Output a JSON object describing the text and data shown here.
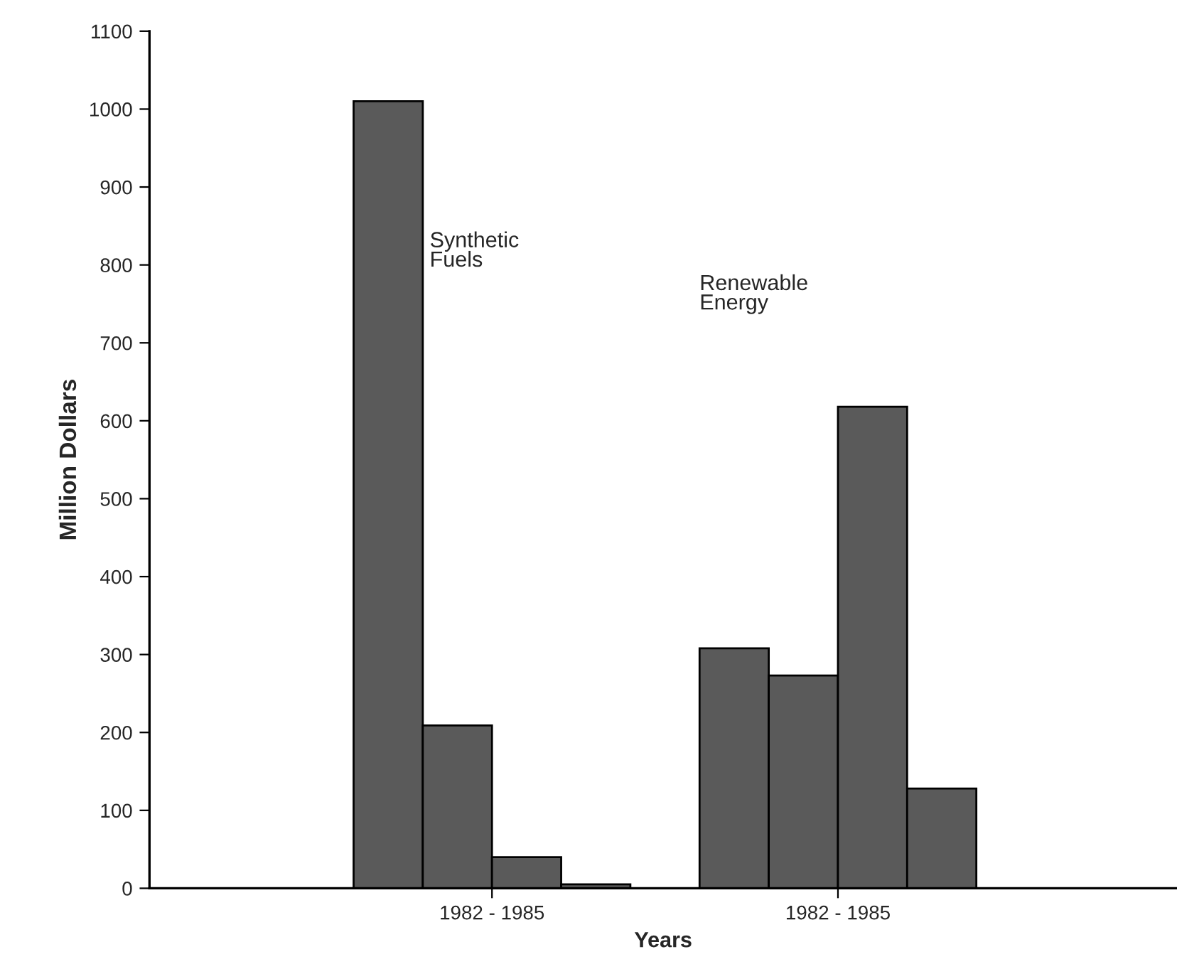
{
  "chart_data": {
    "type": "bar",
    "xlabel": "Years",
    "ylabel": "Million Dollars",
    "categories": [
      "1982 - 1985",
      "1982 - 1985"
    ],
    "series": [
      {
        "color": "#5a5a5a",
        "values": [
          1010,
          308
        ]
      },
      {
        "color": "#5a5a5a",
        "values": [
          209,
          273
        ]
      },
      {
        "color": "#5a5a5a",
        "values": [
          40,
          618
        ]
      },
      {
        "color": "#5a5a5a",
        "values": [
          5,
          128
        ]
      }
    ],
    "annotations": [
      "Synthetic\nFuels",
      "Renewable\nEnergy"
    ],
    "ylim": [
      0,
      1100
    ],
    "yticks": [
      0,
      100,
      200,
      300,
      400,
      500,
      600,
      700,
      800,
      900,
      1000,
      1100
    ],
    "grid": false,
    "legend": false
  }
}
